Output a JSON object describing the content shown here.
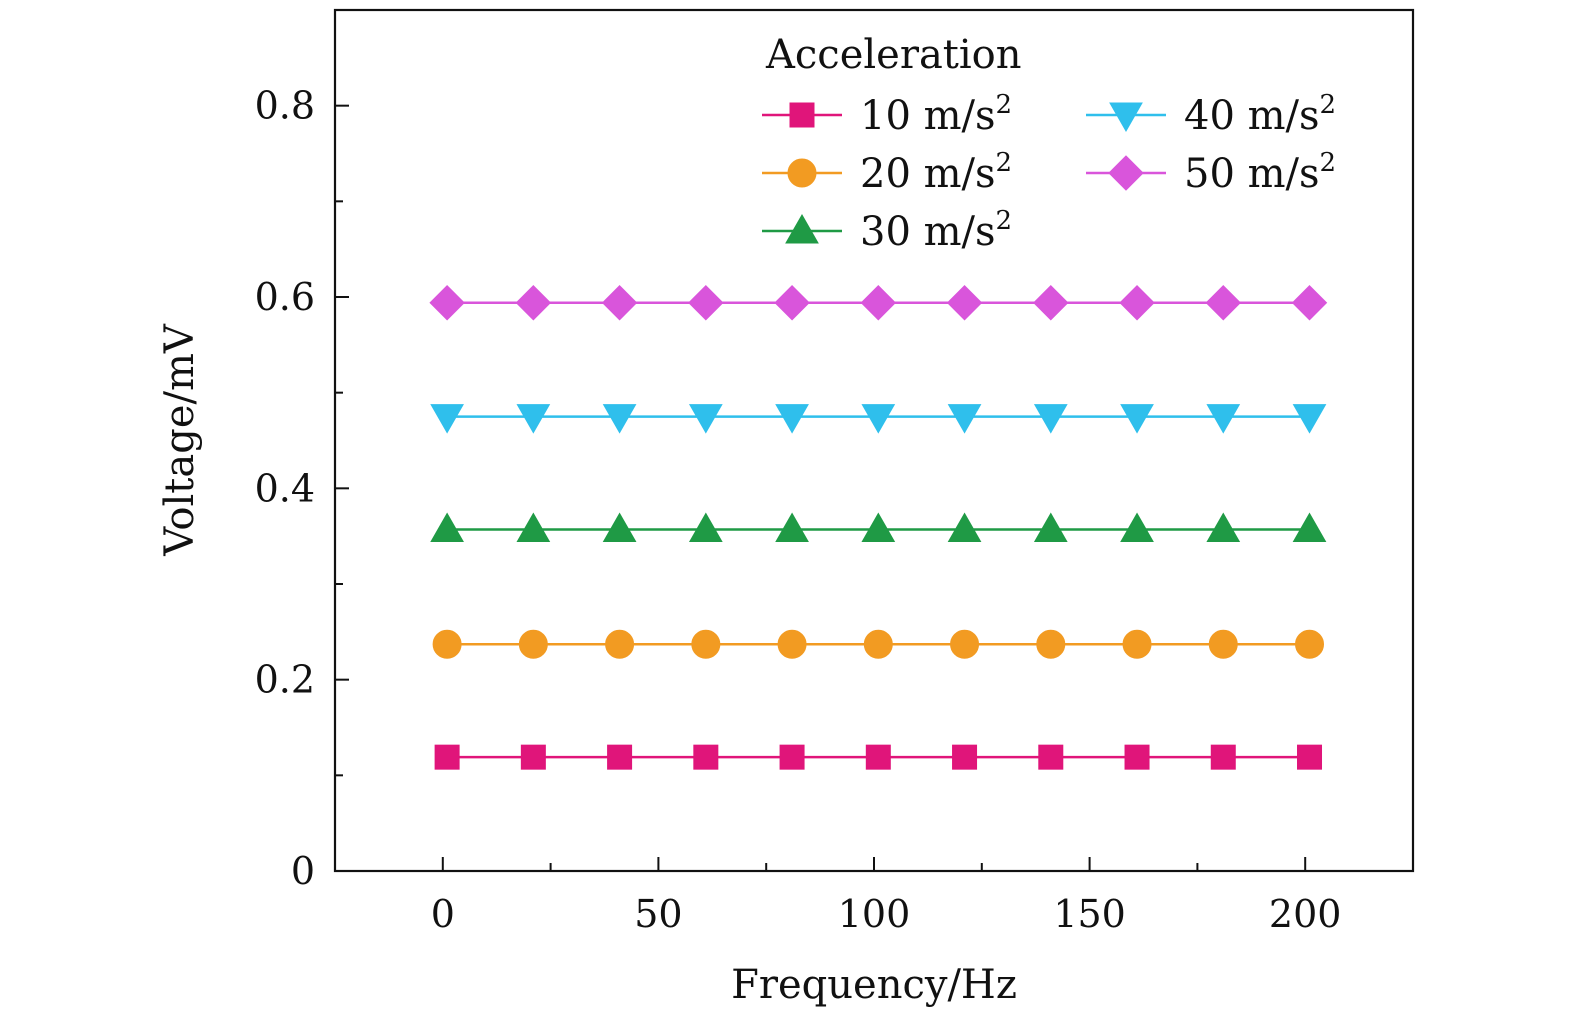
{
  "chart_data": {
    "type": "line",
    "title": "",
    "xlabel": "Frequency/Hz",
    "ylabel": "Voltage/mV",
    "xlim": [
      -25,
      225
    ],
    "ylim": [
      0,
      0.9
    ],
    "xticks": [
      0,
      50,
      100,
      150,
      200
    ],
    "xtick_labels": [
      "0",
      "50",
      "100",
      "150",
      "200"
    ],
    "xminor": [
      25,
      75,
      125,
      175
    ],
    "yticks": [
      0,
      0.2,
      0.4,
      0.6,
      0.8
    ],
    "ytick_labels": [
      "0",
      "0.2",
      "0.4",
      "0.6",
      "0.8"
    ],
    "yminor": [
      0.1,
      0.3,
      0.5,
      0.7
    ],
    "grid": false,
    "legend_title": "Acceleration",
    "legend_position": "top-right",
    "x": [
      1,
      21,
      41,
      61,
      81,
      101,
      121,
      141,
      161,
      181,
      201
    ],
    "series": [
      {
        "name": "10 m/s²",
        "label_base": "10 m/s",
        "label_sup": "2",
        "marker": "square",
        "color": "#e0157a",
        "values": [
          0.119,
          0.119,
          0.119,
          0.119,
          0.119,
          0.119,
          0.119,
          0.119,
          0.119,
          0.119,
          0.119
        ]
      },
      {
        "name": "20 m/s²",
        "label_base": "20 m/s",
        "label_sup": "2",
        "marker": "circle",
        "color": "#f29b22",
        "values": [
          0.237,
          0.237,
          0.237,
          0.237,
          0.237,
          0.237,
          0.237,
          0.237,
          0.237,
          0.237,
          0.237
        ]
      },
      {
        "name": "30 m/s²",
        "label_base": "30 m/s",
        "label_sup": "2",
        "marker": "triangle-up",
        "color": "#1f9a45",
        "values": [
          0.357,
          0.357,
          0.357,
          0.357,
          0.357,
          0.357,
          0.357,
          0.357,
          0.357,
          0.357,
          0.357
        ]
      },
      {
        "name": "40 m/s²",
        "label_base": "40 m/s",
        "label_sup": "2",
        "marker": "triangle-down",
        "color": "#2fbfec",
        "values": [
          0.475,
          0.475,
          0.475,
          0.475,
          0.475,
          0.475,
          0.475,
          0.475,
          0.475,
          0.475,
          0.475
        ]
      },
      {
        "name": "50 m/s²",
        "label_base": "50 m/s",
        "label_sup": "2",
        "marker": "diamond",
        "color": "#d955db",
        "values": [
          0.594,
          0.594,
          0.594,
          0.594,
          0.594,
          0.594,
          0.594,
          0.594,
          0.594,
          0.594,
          0.594
        ]
      }
    ]
  }
}
